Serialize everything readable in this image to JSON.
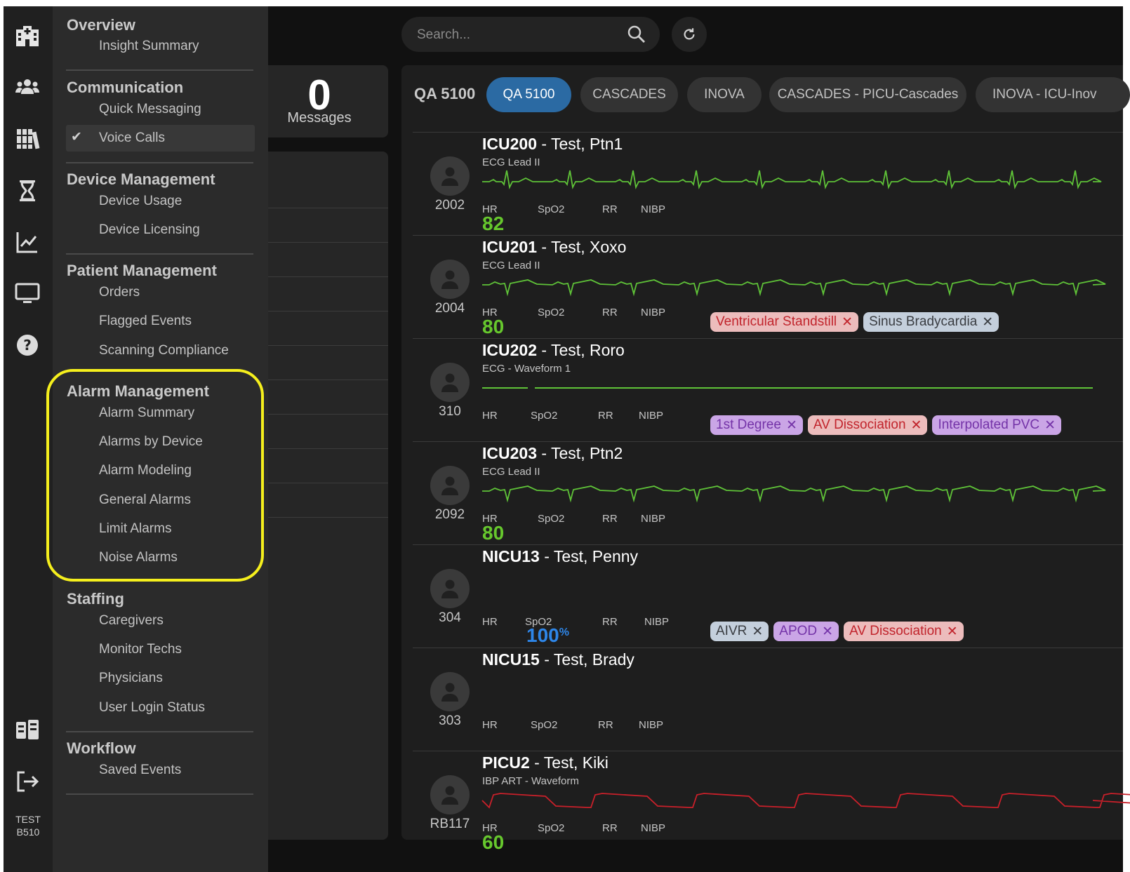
{
  "sidebar": {
    "unit_line1": "TEST",
    "unit_line2": "B510",
    "icons": [
      "hospital-icon",
      "users-icon",
      "library-icon",
      "hourglass-icon",
      "chart-icon",
      "monitor-icon",
      "help-icon",
      "monitor-board-icon",
      "logout-icon"
    ]
  },
  "menu": {
    "sections": [
      {
        "title": "Overview",
        "items": [
          "Insight Summary"
        ]
      },
      {
        "title": "Communication",
        "items": [
          "Quick Messaging",
          "Voice Calls"
        ]
      },
      {
        "title": "Device Management",
        "items": [
          "Device Usage",
          "Device Licensing"
        ]
      },
      {
        "title": "Patient Management",
        "items": [
          "Orders",
          "Flagged Events",
          "Scanning Compliance"
        ]
      },
      {
        "title": "Alarm Management",
        "items": [
          "Alarm Summary",
          "Alarms by Device",
          "Alarm Modeling",
          "General Alarms",
          "Limit Alarms",
          "Noise Alarms"
        ]
      },
      {
        "title": "Staffing",
        "items": [
          "Caregivers",
          "Monitor Techs",
          "Physicians",
          "User Login Status"
        ]
      },
      {
        "title": "Workflow",
        "items": [
          "Saved Events"
        ]
      }
    ],
    "active_item": "Voice Calls",
    "highlight_color": "#f5ef1d"
  },
  "messages": {
    "count": "0",
    "label": "Messages"
  },
  "search": {
    "placeholder": "Search..."
  },
  "main": {
    "unit": "QA 5100",
    "tabs": [
      {
        "label": "QA 5100",
        "active": true
      },
      {
        "label": "CASCADES",
        "active": false
      },
      {
        "label": "INOVA",
        "active": false
      },
      {
        "label": "CASCADES - PICU-Cascades",
        "active": false
      },
      {
        "label": "INOVA - ICU-Inov",
        "active": false
      }
    ],
    "vital_labels": {
      "hr": "HR",
      "spo2": "SpO2",
      "rr": "RR",
      "nibp": "NIBP"
    },
    "patients": [
      {
        "bed_id": "ICU200",
        "name": "Test, Ptn1",
        "bed": "2002",
        "lead": "ECG Lead II",
        "hr": "82",
        "wave_color": "#5fc338",
        "chips": []
      },
      {
        "bed_id": "ICU201",
        "name": "Test, Xoxo",
        "bed": "2004",
        "lead": "ECG Lead II",
        "hr": "80",
        "wave_color": "#5fc338",
        "chips": [
          {
            "label": "Ventricular Standstill",
            "color": "red"
          },
          {
            "label": "Sinus Bradycardia",
            "color": "blue"
          }
        ]
      },
      {
        "bed_id": "ICU202",
        "name": "Test, Roro",
        "bed": "310",
        "lead": "ECG - Waveform 1",
        "hr": "",
        "wave_color": "#5fc338",
        "chips": [
          {
            "label": "1st Degree",
            "color": "purple"
          },
          {
            "label": "AV Dissociation",
            "color": "red"
          },
          {
            "label": "Interpolated PVC",
            "color": "purple"
          }
        ]
      },
      {
        "bed_id": "ICU203",
        "name": "Test, Ptn2",
        "bed": "2092",
        "lead": "ECG Lead II",
        "hr": "80",
        "wave_color": "#5fc338",
        "chips": []
      },
      {
        "bed_id": "NICU13",
        "name": "Test, Penny",
        "bed": "304",
        "lead": "",
        "hr": "",
        "spo2": "100",
        "spo2_unit": "%",
        "wave_color": "",
        "chips": [
          {
            "label": "AIVR",
            "color": "blue"
          },
          {
            "label": "APOD",
            "color": "purple"
          },
          {
            "label": "AV Dissociation",
            "color": "red"
          }
        ]
      },
      {
        "bed_id": "NICU15",
        "name": "Test, Brady",
        "bed": "303",
        "lead": "",
        "hr": "",
        "wave_color": "",
        "chips": []
      },
      {
        "bed_id": "PICU2",
        "name": "Test, Kiki",
        "bed": "RB117",
        "lead": "IBP ART - Waveform",
        "hr": "60",
        "wave_color": "#c9202a",
        "chips": []
      }
    ]
  }
}
